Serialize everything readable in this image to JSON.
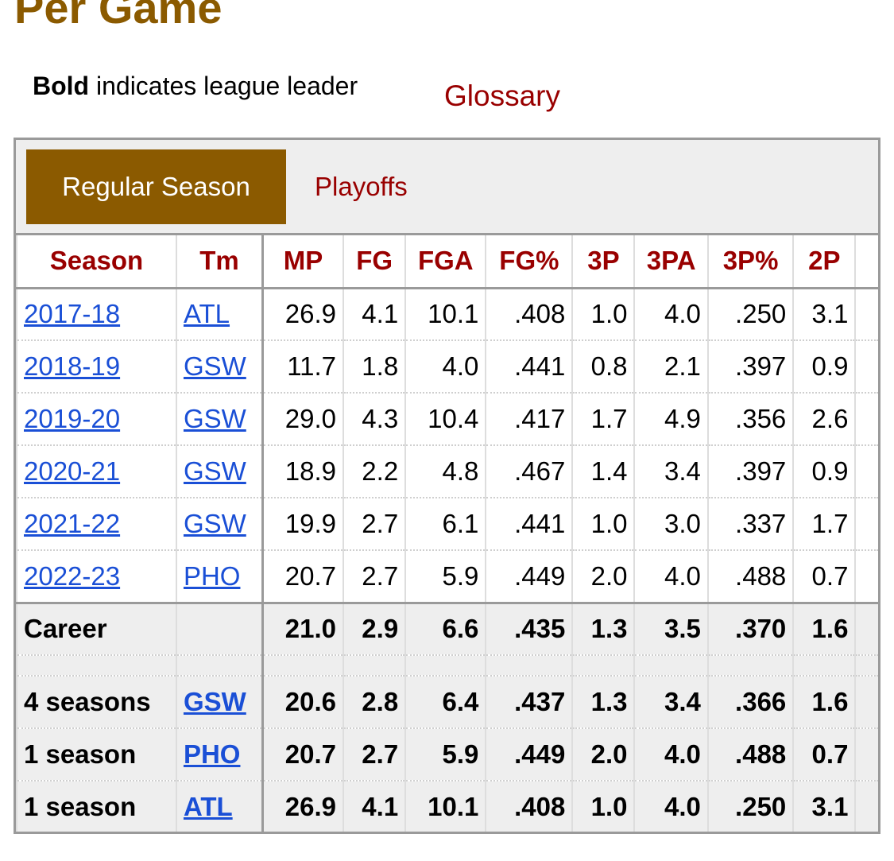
{
  "page": {
    "title": "Per Game",
    "bold_word": "Bold",
    "legend_rest": " indicates league leader",
    "glossary": "Glossary"
  },
  "tabs": [
    {
      "label": "Regular Season",
      "active": true
    },
    {
      "label": "Playoffs",
      "active": false
    }
  ],
  "table": {
    "columns": [
      "Season",
      "Tm",
      "MP",
      "FG",
      "FGA",
      "FG%",
      "3P",
      "3PA",
      "3P%",
      "2P"
    ],
    "rows": [
      {
        "season": "2017-18",
        "tm": "ATL",
        "mp": "26.9",
        "fg": "4.1",
        "fga": "10.1",
        "fgp": ".408",
        "tp": "1.0",
        "tpa": "4.0",
        "tpp": ".250",
        "twop": "3.1"
      },
      {
        "season": "2018-19",
        "tm": "GSW",
        "mp": "11.7",
        "fg": "1.8",
        "fga": "4.0",
        "fgp": ".441",
        "tp": "0.8",
        "tpa": "2.1",
        "tpp": ".397",
        "twop": "0.9"
      },
      {
        "season": "2019-20",
        "tm": "GSW",
        "mp": "29.0",
        "fg": "4.3",
        "fga": "10.4",
        "fgp": ".417",
        "tp": "1.7",
        "tpa": "4.9",
        "tpp": ".356",
        "twop": "2.6"
      },
      {
        "season": "2020-21",
        "tm": "GSW",
        "mp": "18.9",
        "fg": "2.2",
        "fga": "4.8",
        "fgp": ".467",
        "tp": "1.4",
        "tpa": "3.4",
        "tpp": ".397",
        "twop": "0.9"
      },
      {
        "season": "2021-22",
        "tm": "GSW",
        "mp": "19.9",
        "fg": "2.7",
        "fga": "6.1",
        "fgp": ".441",
        "tp": "1.0",
        "tpa": "3.0",
        "tpp": ".337",
        "twop": "1.7"
      },
      {
        "season": "2022-23",
        "tm": "PHO",
        "mp": "20.7",
        "fg": "2.7",
        "fga": "5.9",
        "fgp": ".449",
        "tp": "2.0",
        "tpa": "4.0",
        "tpp": ".488",
        "twop": "0.7"
      }
    ],
    "career": {
      "season": "Career",
      "tm": "",
      "mp": "21.0",
      "fg": "2.9",
      "fga": "6.6",
      "fgp": ".435",
      "tp": "1.3",
      "tpa": "3.5",
      "tpp": ".370",
      "twop": "1.6"
    },
    "splits": [
      {
        "season": "4 seasons",
        "tm": "GSW",
        "mp": "20.6",
        "fg": "2.8",
        "fga": "6.4",
        "fgp": ".437",
        "tp": "1.3",
        "tpa": "3.4",
        "tpp": ".366",
        "twop": "1.6"
      },
      {
        "season": "1 season",
        "tm": "PHO",
        "mp": "20.7",
        "fg": "2.7",
        "fga": "5.9",
        "fgp": ".449",
        "tp": "2.0",
        "tpa": "4.0",
        "tpp": ".488",
        "twop": "0.7"
      },
      {
        "season": "1 season",
        "tm": "ATL",
        "mp": "26.9",
        "fg": "4.1",
        "fga": "10.1",
        "fgp": ".408",
        "tp": "1.0",
        "tpa": "4.0",
        "tpp": ".250",
        "twop": "3.1"
      }
    ]
  },
  "colors": {
    "brand": "#8b5a00",
    "header_text": "#990000",
    "link": "#1a4fd6"
  }
}
